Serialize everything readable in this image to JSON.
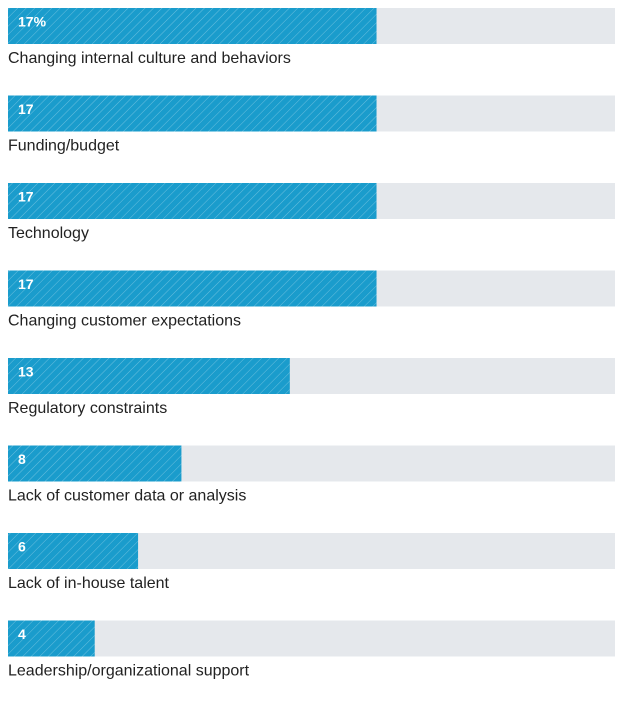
{
  "chart_data": {
    "type": "bar",
    "orientation": "horizontal",
    "categories": [
      "Changing internal culture and behaviors",
      "Funding/budget",
      "Technology",
      "Changing customer expectations",
      "Regulatory constraints",
      "Lack of customer data or analysis",
      "Lack of in-house talent",
      "Leadership/organizational support"
    ],
    "values": [
      17,
      17,
      17,
      17,
      13,
      8,
      6,
      4
    ],
    "value_labels": [
      "17%",
      "17",
      "17",
      "17",
      "13",
      "8",
      "6",
      "4"
    ],
    "color": "#1a9ccc",
    "track_color": "#e5e8ec",
    "xlim": [
      0,
      28
    ]
  }
}
